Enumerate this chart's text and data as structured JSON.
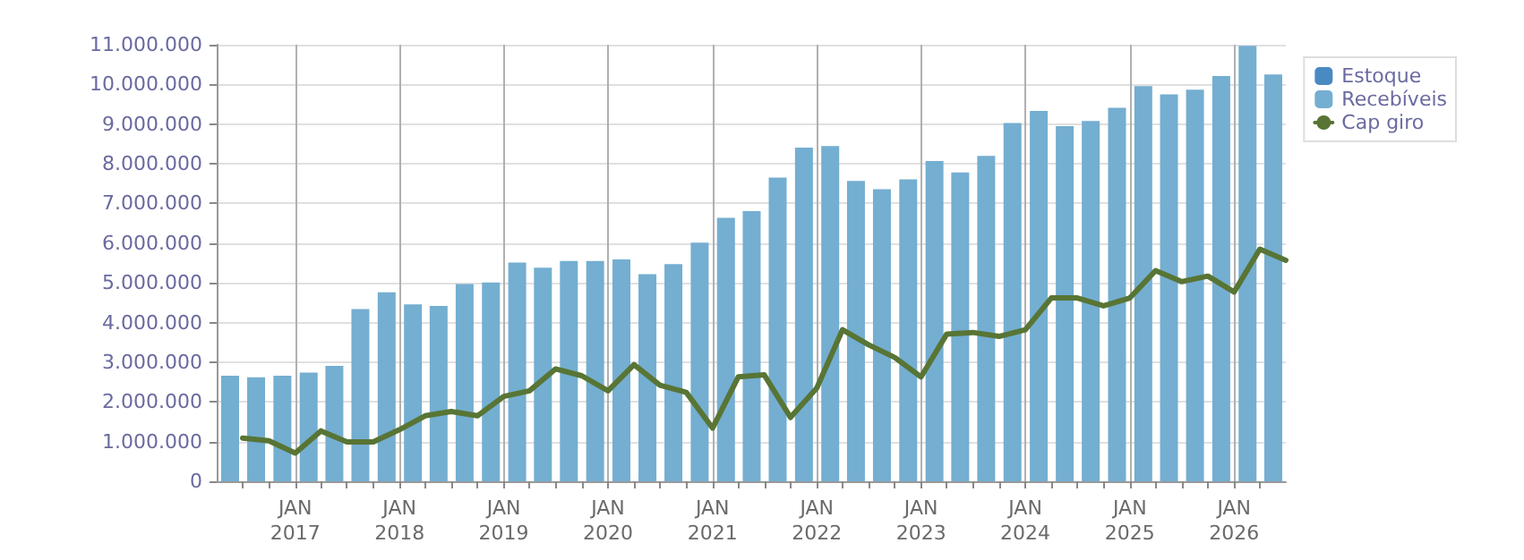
{
  "chart_data": {
    "type": "bar",
    "x": [
      "2016-04-01",
      "2016-07-01",
      "2016-10-01",
      "2017-01-01",
      "2017-04-01",
      "2017-07-01",
      "2017-10-01",
      "2018-01-01",
      "2018-04-01",
      "2018-07-01",
      "2018-10-01",
      "2019-01-01",
      "2019-04-01",
      "2019-07-01",
      "2019-10-01",
      "2020-01-01",
      "2020-04-01",
      "2020-07-01",
      "2020-10-01",
      "2021-01-01",
      "2021-04-01",
      "2021-07-01",
      "2021-10-01",
      "2022-01-01",
      "2022-04-01",
      "2022-07-01",
      "2022-10-01",
      "2023-01-01",
      "2023-04-01",
      "2023-07-01",
      "2023-10-01",
      "2024-01-01",
      "2024-04-01",
      "2024-07-01",
      "2024-10-01",
      "2025-01-01",
      "2025-04-01",
      "2025-07-01",
      "2025-10-01",
      "2026-01-01",
      "2026-04-01",
      "2026-07-01"
    ],
    "series": [
      {
        "name": "Estoque",
        "color": "#4a8ac2",
        "values": [
          null,
          null,
          null,
          null,
          null,
          null,
          null,
          null,
          null,
          null,
          null,
          null,
          null,
          null,
          null,
          null,
          null,
          null,
          null,
          null,
          null,
          null,
          null,
          null,
          null,
          null,
          null,
          null,
          null,
          null,
          null,
          null,
          null,
          null,
          null,
          null,
          null,
          null,
          null,
          null,
          null,
          null
        ]
      },
      {
        "name": "Recebíveis",
        "color": "#74aed1",
        "values": [
          2660000,
          2620000,
          2660000,
          2740000,
          2910000,
          4340000,
          4760000,
          4460000,
          4420000,
          4970000,
          5010000,
          5510000,
          5380000,
          5550000,
          5550000,
          5590000,
          5220000,
          5470000,
          6010000,
          6640000,
          6810000,
          7650000,
          8410000,
          8450000,
          7570000,
          7360000,
          7610000,
          8070000,
          7780000,
          8200000,
          9030000,
          9330000,
          8950000,
          9080000,
          9410000,
          9960000,
          9750000,
          9870000,
          10210000,
          10970000,
          10250000,
          null
        ]
      },
      {
        "name": "Cap giro",
        "type": "line",
        "color": "#587535",
        "values": [
          null,
          1090000,
          1020000,
          710000,
          1270000,
          990000,
          990000,
          1300000,
          1650000,
          1760000,
          1650000,
          2140000,
          2280000,
          2830000,
          2660000,
          2280000,
          2940000,
          2420000,
          2240000,
          1340000,
          2630000,
          2680000,
          1610000,
          2350000,
          3820000,
          3440000,
          3120000,
          2630000,
          3710000,
          3750000,
          3650000,
          3820000,
          4620000,
          4620000,
          4420000,
          4620000,
          5310000,
          5030000,
          5170000,
          4770000,
          5850000,
          5570000
        ]
      }
    ],
    "xlim": [
      "2016-04-01",
      "2026-07-01"
    ],
    "xticks": [
      {
        "value": "2016-07-01",
        "label": null
      },
      {
        "value": "2016-10-01",
        "label": null
      },
      {
        "value": "2017-01-01",
        "label": "JAN\n2017"
      },
      {
        "value": "2017-04-01",
        "label": null
      },
      {
        "value": "2017-07-01",
        "label": null
      },
      {
        "value": "2017-10-01",
        "label": null
      },
      {
        "value": "2018-01-01",
        "label": "JAN\n2018"
      },
      {
        "value": "2018-04-01",
        "label": null
      },
      {
        "value": "2018-07-01",
        "label": null
      },
      {
        "value": "2018-10-01",
        "label": null
      },
      {
        "value": "2019-01-01",
        "label": "JAN\n2019"
      },
      {
        "value": "2019-04-01",
        "label": null
      },
      {
        "value": "2019-07-01",
        "label": null
      },
      {
        "value": "2019-10-01",
        "label": null
      },
      {
        "value": "2020-01-01",
        "label": "JAN\n2020"
      },
      {
        "value": "2020-04-01",
        "label": null
      },
      {
        "value": "2020-07-01",
        "label": null
      },
      {
        "value": "2020-10-01",
        "label": null
      },
      {
        "value": "2021-01-01",
        "label": "JAN\n2021"
      },
      {
        "value": "2021-04-01",
        "label": null
      },
      {
        "value": "2021-07-01",
        "label": null
      },
      {
        "value": "2021-10-01",
        "label": null
      },
      {
        "value": "2022-01-01",
        "label": "JAN\n2022"
      },
      {
        "value": "2022-04-01",
        "label": null
      },
      {
        "value": "2022-07-01",
        "label": null
      },
      {
        "value": "2022-10-01",
        "label": null
      },
      {
        "value": "2023-01-01",
        "label": "JAN\n2023"
      },
      {
        "value": "2023-04-01",
        "label": null
      },
      {
        "value": "2023-07-01",
        "label": null
      },
      {
        "value": "2023-10-01",
        "label": null
      },
      {
        "value": "2024-01-01",
        "label": "JAN\n2024"
      },
      {
        "value": "2024-04-01",
        "label": null
      },
      {
        "value": "2024-07-01",
        "label": null
      },
      {
        "value": "2024-10-01",
        "label": null
      },
      {
        "value": "2025-01-01",
        "label": "JAN\n2025"
      },
      {
        "value": "2025-04-01",
        "label": null
      },
      {
        "value": "2025-07-01",
        "label": null
      },
      {
        "value": "2025-10-01",
        "label": null
      },
      {
        "value": "2026-01-01",
        "label": "JAN\n2026"
      },
      {
        "value": "2026-04-01",
        "label": null
      }
    ],
    "ylim": [
      0,
      11000000
    ],
    "yticks": [
      {
        "value": 0,
        "label": "0"
      },
      {
        "value": 1000000,
        "label": "1.000.000"
      },
      {
        "value": 2000000,
        "label": "2.000.000"
      },
      {
        "value": 3000000,
        "label": "3.000.000"
      },
      {
        "value": 4000000,
        "label": "4.000.000"
      },
      {
        "value": 5000000,
        "label": "5.000.000"
      },
      {
        "value": 6000000,
        "label": "6.000.000"
      },
      {
        "value": 7000000,
        "label": "7.000.000"
      },
      {
        "value": 8000000,
        "label": "8.000.000"
      },
      {
        "value": 9000000,
        "label": "9.000.000"
      },
      {
        "value": 10000000,
        "label": "10.000.000"
      },
      {
        "value": 11000000,
        "label": "11.000.000"
      }
    ],
    "grid": true,
    "legend": "top right",
    "marker": "none",
    "line_style": "solid"
  }
}
